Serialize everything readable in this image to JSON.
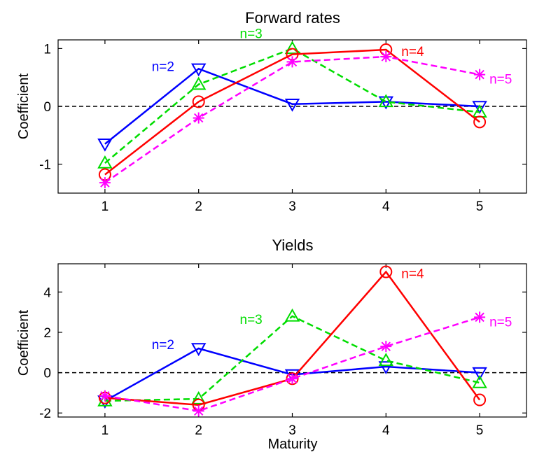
{
  "chart_data": [
    {
      "type": "line",
      "title": "Forward rates",
      "xlabel": "",
      "ylabel": "Coefficient",
      "xlim": [
        0.5,
        5.5
      ],
      "ylim": [
        -1.5,
        1.15
      ],
      "xticks": [
        1,
        2,
        3,
        4,
        5
      ],
      "yticks": [
        -1,
        0,
        1
      ],
      "zero_line": true,
      "grid": false,
      "x": [
        1,
        2,
        3,
        4,
        5
      ],
      "series": [
        {
          "name": "n=2",
          "color": "#0000ff",
          "dash": "solid",
          "marker": "triangle-down",
          "values": [
            -0.65,
            0.65,
            0.04,
            0.08,
            0.0
          ],
          "label_x": 2,
          "label_y": 0.65
        },
        {
          "name": "n=3",
          "color": "#00dd00",
          "dash": "dashed",
          "marker": "triangle-up",
          "values": [
            -0.98,
            0.38,
            1.0,
            0.08,
            -0.1
          ],
          "label_x": 3,
          "label_y": 1.0
        },
        {
          "name": "n=4",
          "color": "#ff0000",
          "dash": "solid",
          "marker": "circle",
          "values": [
            -1.18,
            0.08,
            0.9,
            0.98,
            -0.27
          ],
          "label_x": 4,
          "label_y": 0.98
        },
        {
          "name": "n=5",
          "color": "#ff00ff",
          "dash": "dashed",
          "marker": "asterisk",
          "values": [
            -1.32,
            -0.2,
            0.77,
            0.86,
            0.55
          ],
          "label_x": 5,
          "label_y": 0.55
        }
      ]
    },
    {
      "type": "line",
      "title": "Yields",
      "xlabel": "Maturity",
      "ylabel": "Coefficient",
      "xlim": [
        0.5,
        5.5
      ],
      "ylim": [
        -2.2,
        5.4
      ],
      "xticks": [
        1,
        2,
        3,
        4,
        5
      ],
      "yticks": [
        -2,
        0,
        2,
        4
      ],
      "zero_line": true,
      "grid": false,
      "x": [
        1,
        2,
        3,
        4,
        5
      ],
      "series": [
        {
          "name": "n=2",
          "color": "#0000ff",
          "dash": "solid",
          "marker": "triangle-down",
          "values": [
            -1.4,
            1.2,
            -0.1,
            0.3,
            0.0
          ],
          "label_x": 2,
          "label_y": 1.2
        },
        {
          "name": "n=3",
          "color": "#00dd00",
          "dash": "dashed",
          "marker": "triangle-up",
          "values": [
            -1.4,
            -1.3,
            2.8,
            0.6,
            -0.5
          ],
          "label_x": 3,
          "label_y": 2.8
        },
        {
          "name": "n=4",
          "color": "#ff0000",
          "dash": "solid",
          "marker": "circle",
          "values": [
            -1.25,
            -1.6,
            -0.3,
            5.0,
            -1.35
          ],
          "label_x": 4,
          "label_y": 5.0
        },
        {
          "name": "n=5",
          "color": "#ff00ff",
          "dash": "dashed",
          "marker": "asterisk",
          "values": [
            -1.15,
            -1.9,
            -0.3,
            1.3,
            2.75
          ],
          "label_x": 5,
          "label_y": 2.75
        }
      ]
    }
  ]
}
